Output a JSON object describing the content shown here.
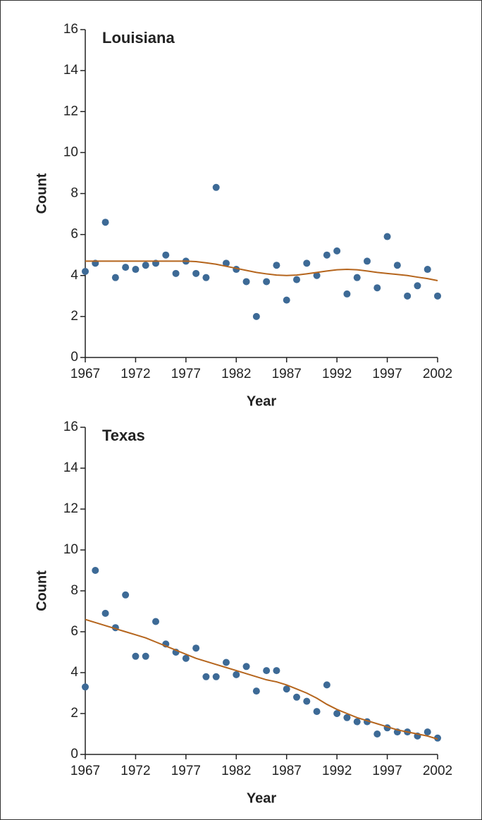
{
  "chart_data": [
    {
      "type": "scatter",
      "title": "Louisiana",
      "x_label": "Year",
      "y_label": "Count",
      "x": [
        1967,
        1968,
        1969,
        1970,
        1971,
        1972,
        1973,
        1974,
        1975,
        1976,
        1977,
        1978,
        1979,
        1980,
        1981,
        1982,
        1983,
        1984,
        1985,
        1986,
        1987,
        1988,
        1989,
        1990,
        1991,
        1992,
        1993,
        1994,
        1995,
        1996,
        1997,
        1998,
        1999,
        2000,
        2001,
        2002
      ],
      "points": {
        "color": "#3d6a96",
        "values": [
          4.2,
          4.6,
          6.6,
          3.9,
          4.4,
          4.3,
          4.5,
          4.6,
          5.0,
          4.1,
          4.7,
          4.1,
          3.9,
          8.3,
          4.6,
          4.3,
          3.7,
          2.0,
          3.7,
          4.5,
          2.8,
          3.8,
          4.6,
          4.0,
          5.0,
          5.2,
          3.1,
          3.9,
          4.7,
          3.4,
          5.9,
          4.5,
          3.0,
          3.5,
          4.3,
          3.0
        ]
      },
      "trend": {
        "color": "#b5651d",
        "values": [
          4.7,
          4.7,
          4.7,
          4.7,
          4.7,
          4.7,
          4.7,
          4.7,
          4.7,
          4.7,
          4.7,
          4.68,
          4.62,
          4.55,
          4.45,
          4.35,
          4.25,
          4.15,
          4.08,
          4.02,
          4.0,
          4.02,
          4.08,
          4.15,
          4.22,
          4.28,
          4.3,
          4.28,
          4.22,
          4.15,
          4.1,
          4.05,
          4.0,
          3.92,
          3.85,
          3.75
        ]
      },
      "xlim": [
        1967,
        2002
      ],
      "xticks": [
        1967,
        1972,
        1977,
        1982,
        1987,
        1992,
        1997,
        2002
      ],
      "ylim": [
        0,
        16
      ],
      "yticks": [
        0,
        2,
        4,
        6,
        8,
        10,
        12,
        14,
        16
      ]
    },
    {
      "type": "scatter",
      "title": "Texas",
      "x_label": "Year",
      "y_label": "Count",
      "x": [
        1967,
        1968,
        1969,
        1970,
        1971,
        1972,
        1973,
        1974,
        1975,
        1976,
        1977,
        1978,
        1979,
        1980,
        1981,
        1982,
        1983,
        1984,
        1985,
        1986,
        1987,
        1988,
        1989,
        1990,
        1991,
        1992,
        1993,
        1994,
        1995,
        1996,
        1997,
        1998,
        1999,
        2000,
        2001,
        2002
      ],
      "points": {
        "color": "#3d6a96",
        "values": [
          3.3,
          9.0,
          6.9,
          6.2,
          7.8,
          4.8,
          4.8,
          6.5,
          5.4,
          5.0,
          4.7,
          5.2,
          3.8,
          3.8,
          4.5,
          3.9,
          4.3,
          3.1,
          4.1,
          4.1,
          3.2,
          2.8,
          2.6,
          2.1,
          3.4,
          2.0,
          1.8,
          1.6,
          1.6,
          1.0,
          1.3,
          1.1,
          1.1,
          0.9,
          1.1,
          0.8
        ]
      },
      "trend": {
        "color": "#b5651d",
        "values": [
          6.6,
          6.45,
          6.3,
          6.15,
          6.0,
          5.85,
          5.7,
          5.5,
          5.3,
          5.1,
          4.9,
          4.7,
          4.55,
          4.4,
          4.25,
          4.1,
          3.95,
          3.8,
          3.65,
          3.55,
          3.4,
          3.2,
          3.0,
          2.75,
          2.45,
          2.2,
          2.0,
          1.8,
          1.65,
          1.5,
          1.35,
          1.2,
          1.1,
          1.0,
          0.9,
          0.75
        ]
      },
      "xlim": [
        1967,
        2002
      ],
      "xticks": [
        1967,
        1972,
        1977,
        1982,
        1987,
        1992,
        1997,
        2002
      ],
      "ylim": [
        0,
        16
      ],
      "yticks": [
        0,
        2,
        4,
        6,
        8,
        10,
        12,
        14,
        16
      ]
    }
  ]
}
